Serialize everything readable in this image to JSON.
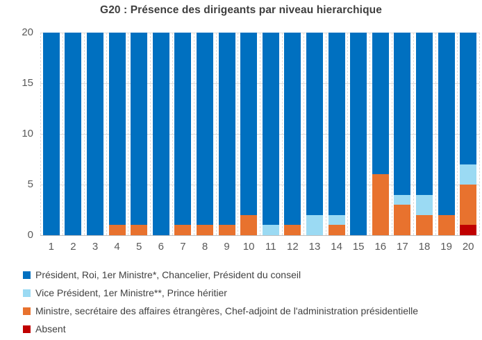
{
  "chart_data": {
    "type": "bar",
    "stacked": true,
    "stack_order": "bottom-is-last-series",
    "title": "G20 : Présence des dirigeants par niveau hierarchique",
    "xlabel": "",
    "ylabel": "",
    "categories": [
      "1",
      "2",
      "3",
      "4",
      "5",
      "6",
      "7",
      "8",
      "9",
      "10",
      "11",
      "12",
      "13",
      "14",
      "15",
      "16",
      "17",
      "18",
      "19",
      "20"
    ],
    "series": [
      {
        "name": "Président, Roi, 1er Ministre*, Chancelier, Président du conseil",
        "color": "#0070C0",
        "values": [
          20,
          20,
          20,
          19,
          19,
          20,
          19,
          19,
          19,
          18,
          19,
          19,
          18,
          18,
          20,
          14,
          16,
          16,
          18,
          13
        ]
      },
      {
        "name": "Vice Président, 1er Ministre**, Prince héritier",
        "color": "#9BDAF3",
        "values": [
          0,
          0,
          0,
          0,
          0,
          0,
          0,
          0,
          0,
          0,
          1,
          0,
          2,
          1,
          0,
          0,
          1,
          2,
          0,
          2
        ]
      },
      {
        "name": "Ministre, secrétaire des affaires étrangères, Chef-adjoint de l'administration présidentielle",
        "color": "#E8722E",
        "values": [
          0,
          0,
          0,
          1,
          1,
          0,
          1,
          1,
          1,
          2,
          0,
          1,
          0,
          1,
          0,
          6,
          3,
          2,
          2,
          4
        ]
      },
      {
        "name": "Absent",
        "color": "#C00000",
        "values": [
          0,
          0,
          0,
          0,
          0,
          0,
          0,
          0,
          0,
          0,
          0,
          0,
          0,
          0,
          0,
          0,
          0,
          0,
          0,
          1
        ]
      }
    ],
    "ylim": [
      0,
      20
    ],
    "yticks": [
      0,
      5,
      10,
      15,
      20
    ],
    "grid": true,
    "gridline_color": "#D9D9D9",
    "axis_line_color": "#BFBFBF",
    "tick_label_color": "#595959",
    "title_color": "#3F3F3F",
    "legend_position": "bottom"
  }
}
